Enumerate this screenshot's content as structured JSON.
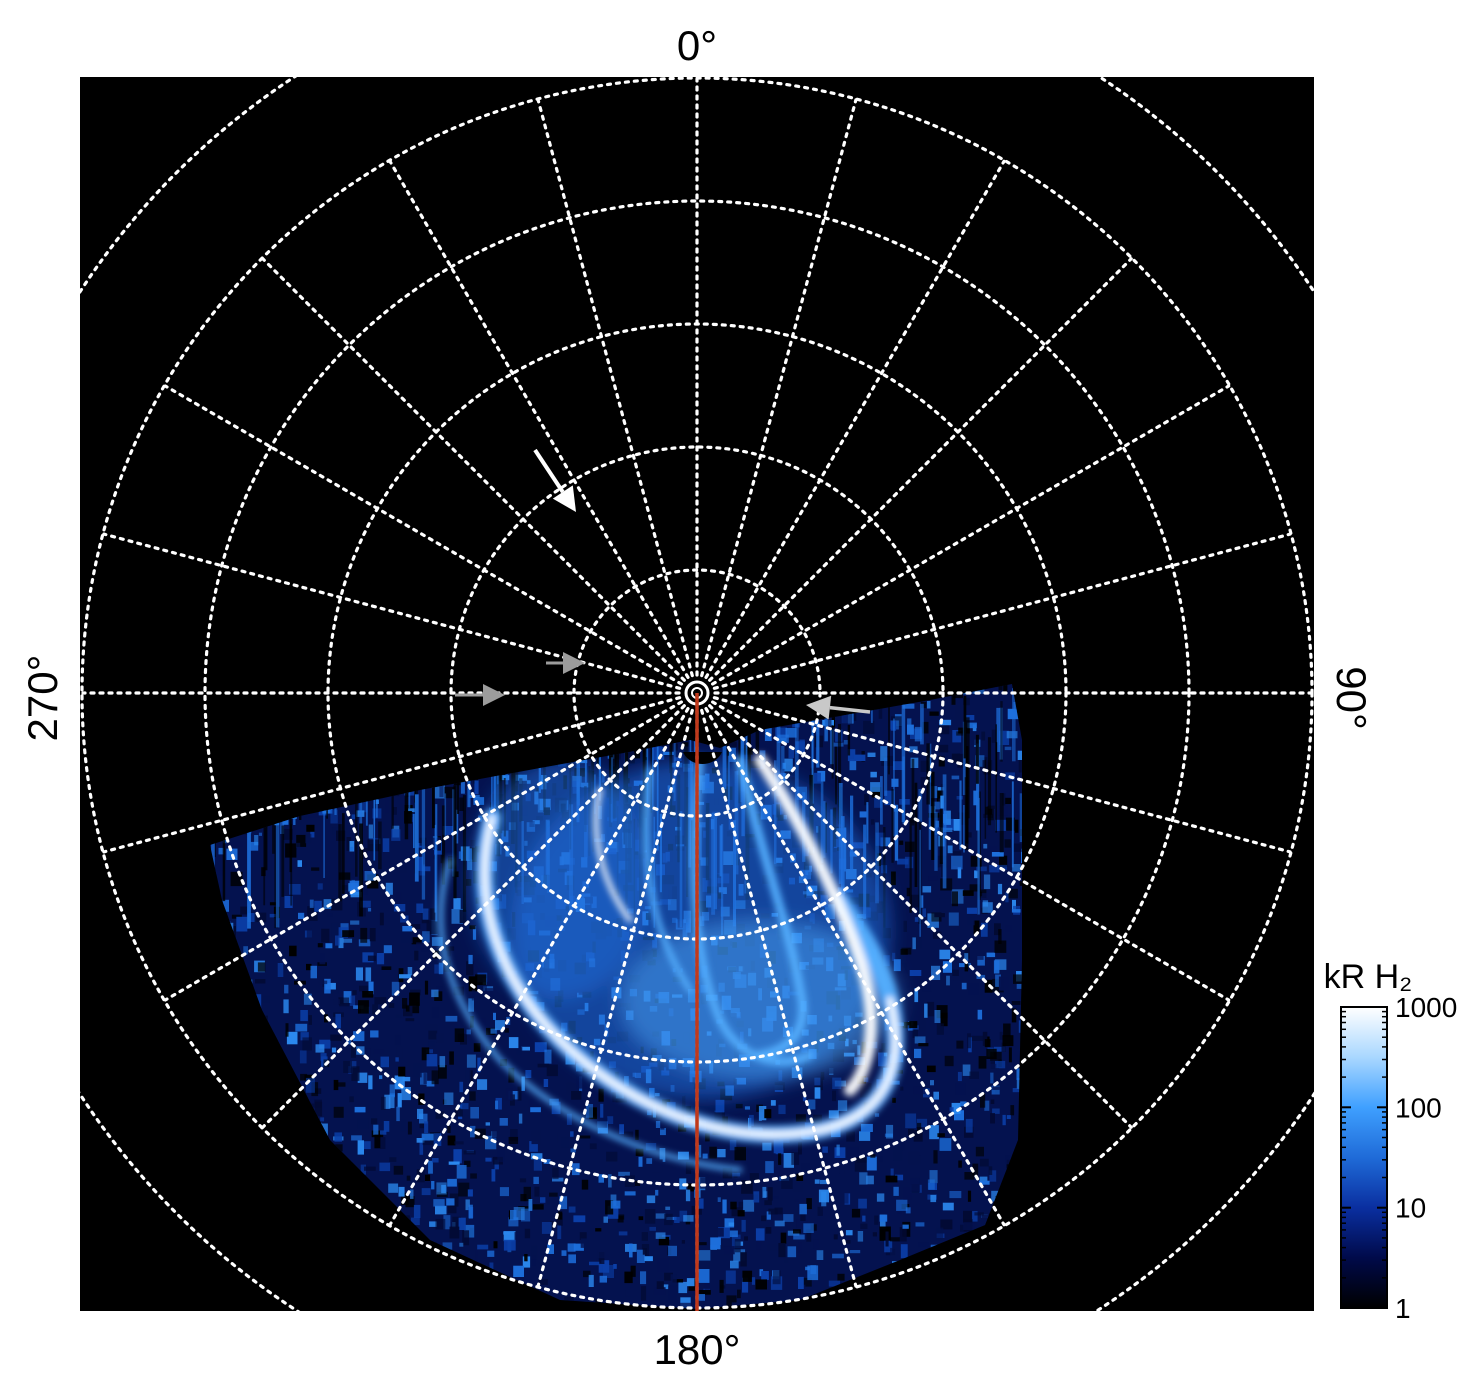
{
  "chart_data": {
    "type": "heatmap",
    "projection": "polar",
    "title": "",
    "longitude_labels": [
      {
        "id": "top",
        "text": "0°",
        "longitude": 0
      },
      {
        "id": "right",
        "text": "90°",
        "longitude": 90
      },
      {
        "id": "bottom",
        "text": "180°",
        "longitude": 180
      },
      {
        "id": "left",
        "text": "270°",
        "longitude": 270
      }
    ],
    "grid": {
      "meridian_step_deg": 15,
      "latitude_rings": 6,
      "style": "white dotted"
    },
    "colorbar": {
      "label": "kR H₂",
      "scale": "log",
      "range": [
        1,
        1000
      ],
      "ticks": [
        {
          "value": 1,
          "text": "1"
        },
        {
          "value": 10,
          "text": "10"
        },
        {
          "value": 100,
          "text": "100"
        },
        {
          "value": 1000,
          "text": "1000"
        }
      ],
      "colors": [
        "#000000",
        "#000a4a",
        "#0a2fa0",
        "#1f6bd8",
        "#3fa0ff",
        "#a9d7ff",
        "#ffffff"
      ]
    },
    "annotations": [
      {
        "type": "arrow",
        "color": "#ffffff"
      },
      {
        "type": "arrow",
        "color": "#9c9c9c"
      },
      {
        "type": "arrow",
        "color": "#9c9c9c"
      },
      {
        "type": "arrow",
        "color": "#c8c8c8"
      },
      {
        "type": "line",
        "longitude": 180,
        "color": "#c0391b"
      }
    ],
    "emission_colors": [
      "#04124f",
      "#0b3fa8",
      "#1d6fdc",
      "#55b0ff",
      "#ffffff"
    ],
    "background": "#000000"
  }
}
